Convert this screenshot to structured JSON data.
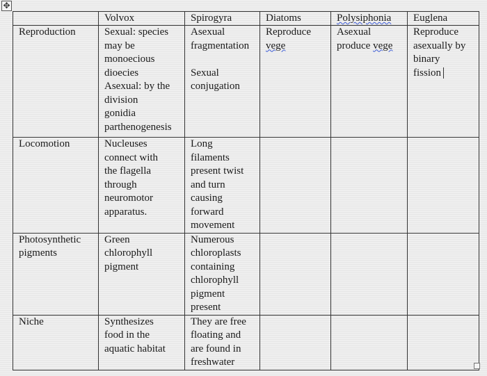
{
  "table": {
    "columns": [
      "",
      "Volvox",
      "Spirogyra",
      "Diatoms",
      "Polysiphonia",
      "Euglena"
    ],
    "rows": [
      {
        "label": "Reproduction",
        "cells": [
          "Sexual: species\nmay be\nmonoecious\ndioecies\nAsexual: by the\ndivision\ngonidia\nparthenogenesis",
          "Asexual\nfragmentation\n\nSexual\nconjugation",
          "Reproduce\n",
          "Asexual\nproduce ",
          "Reproduce\nasexually by\nbinary\nfission"
        ],
        "squiggle": {
          "diatoms": "vege",
          "polysiphonia": "vege"
        }
      },
      {
        "label": "Locomotion",
        "cells": [
          "Nucleuses\nconnect with\nthe flagella\nthrough\nneuromotor\napparatus.",
          "Long\nfilaments\npresent twist\nand turn\ncausing\nforward\nmovement",
          "",
          "",
          ""
        ]
      },
      {
        "label": "Photosynthetic\npigments",
        "cells": [
          "Green\nchlorophyll\npigment",
          "Numerous\nchloroplasts\ncontaining\nchlorophyll\npigment\npresent",
          "",
          "",
          ""
        ]
      },
      {
        "label": "Niche",
        "cells": [
          "Synthesizes\nfood in the\naquatic habitat",
          "They are free\nfloating and\nare found in\nfreshwater",
          "",
          "",
          ""
        ]
      }
    ]
  },
  "colors": {
    "border": "#333333",
    "spellcheck_underline": "#3b5bd6"
  }
}
